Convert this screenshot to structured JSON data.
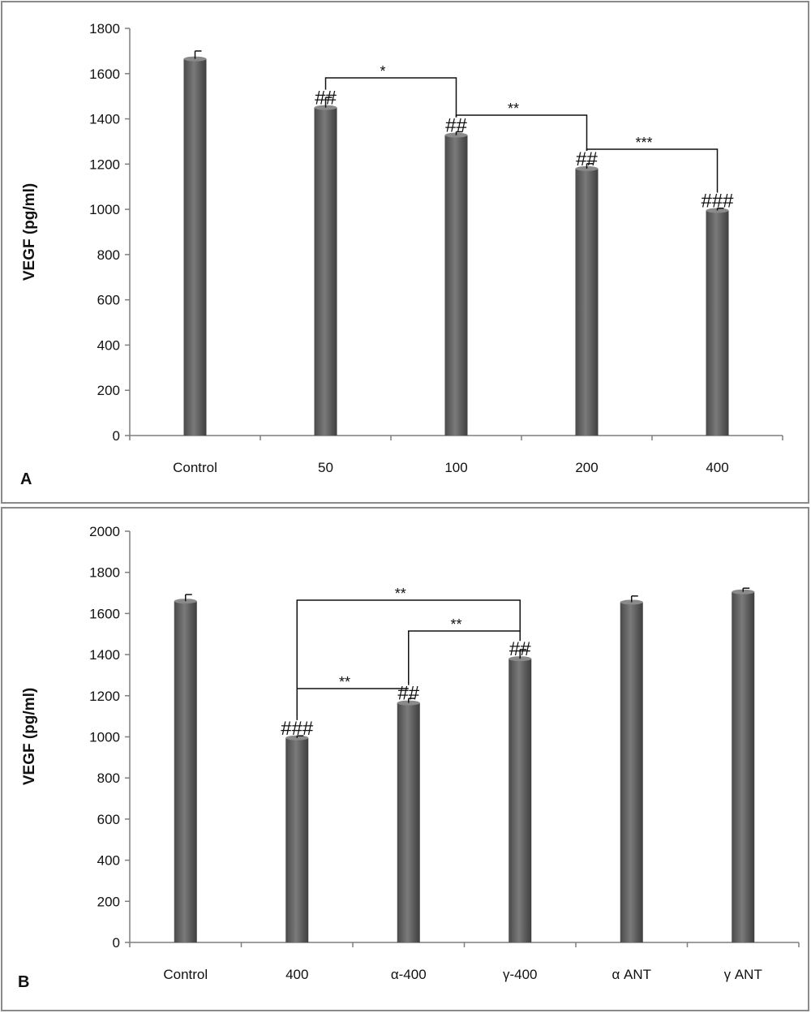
{
  "chart_data": [
    {
      "type": "bar",
      "panel": "A",
      "ylabel": "VEGF (pg/ml)",
      "ylim": [
        0,
        1800
      ],
      "yticks": [
        0,
        200,
        400,
        600,
        800,
        1000,
        1200,
        1400,
        1600,
        1800
      ],
      "categories": [
        "Control",
        "50",
        "100",
        "200",
        "400"
      ],
      "values": [
        1665,
        1450,
        1328,
        1180,
        995
      ],
      "errors": [
        35,
        45,
        15,
        22,
        10
      ],
      "bar_annotations": [
        "",
        "##",
        "##",
        "##",
        "###"
      ],
      "brackets": [
        {
          "from": 1,
          "to": 2,
          "label": "*"
        },
        {
          "from": 2,
          "to": 3,
          "label": "**"
        },
        {
          "from": 3,
          "to": 4,
          "label": "***"
        }
      ],
      "bar_color": "#5a5a5a",
      "grid": false
    },
    {
      "type": "bar",
      "panel": "B",
      "ylabel": "VEGF (pg/ml)",
      "ylim": [
        0,
        2000
      ],
      "yticks": [
        0,
        200,
        400,
        600,
        800,
        1000,
        1200,
        1400,
        1600,
        1800,
        2000
      ],
      "categories": [
        "Control",
        "400",
        "α-400",
        "γ-400",
        "α ANT",
        "γ ANT"
      ],
      "values": [
        1660,
        995,
        1165,
        1380,
        1655,
        1705
      ],
      "errors": [
        32,
        10,
        22,
        45,
        30,
        18
      ],
      "bar_annotations": [
        "",
        "###",
        "##",
        "##",
        "",
        ""
      ],
      "brackets": [
        {
          "from": 1,
          "to": 3,
          "label": "**"
        },
        {
          "from": 2,
          "to": 3,
          "label": "**"
        },
        {
          "from": 1,
          "to": 2,
          "label": "**"
        }
      ],
      "bar_color": "#5a5a5a",
      "grid": false
    }
  ]
}
